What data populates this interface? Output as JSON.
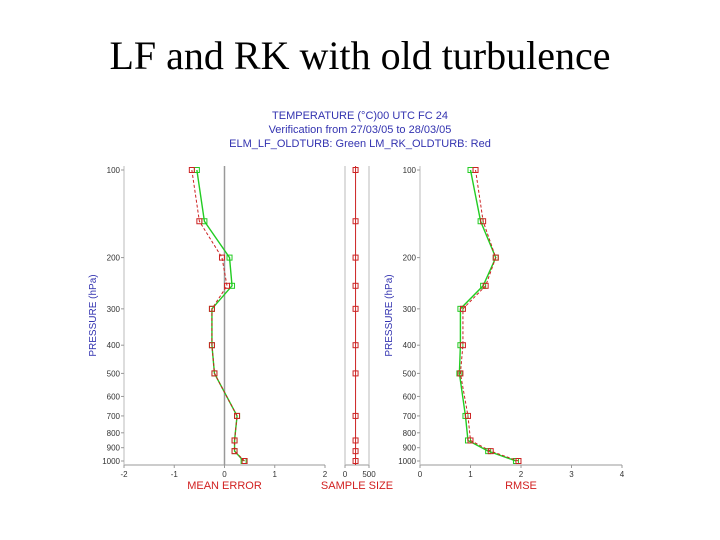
{
  "slide": {
    "title": "LF and RK with old turbulence"
  },
  "header": {
    "line1": "TEMPERATURE (°C)00 UTC FC 24",
    "line2": "Verification from 27/03/05 to 28/03/05",
    "line3": "ELM_LF_OLDTURB: Green    LM_RK_OLDTURB: Red"
  },
  "chart_data": [
    {
      "type": "line",
      "xlabel": "MEAN ERROR",
      "ylabel": "PRESSURE (hPa)",
      "xlim": [
        -2,
        2
      ],
      "xticks": [
        "-2",
        "-1",
        "0",
        "1",
        "2"
      ],
      "y_tick_labels": [
        "100",
        "200",
        "300",
        "400",
        "500",
        "600",
        "700",
        "800",
        "900",
        "1000"
      ],
      "y": [
        100,
        150,
        200,
        250,
        300,
        400,
        500,
        700,
        850,
        925,
        1000
      ],
      "series": [
        {
          "name": "ELM_LF_OLDTURB",
          "color": "#22cc22",
          "values": [
            -0.55,
            -0.4,
            0.1,
            0.15,
            -0.25,
            -0.25,
            -0.2,
            0.25,
            0.2,
            0.2,
            0.38
          ]
        },
        {
          "name": "LM_RK_OLDTURB",
          "color": "#cc2222",
          "values": [
            -0.65,
            -0.5,
            -0.05,
            0.05,
            -0.25,
            -0.25,
            -0.2,
            0.25,
            0.2,
            0.2,
            0.4
          ]
        }
      ]
    },
    {
      "type": "scatter",
      "xlabel": "SAMPLE SIZE",
      "xlim": [
        0,
        500
      ],
      "xticks": [
        "0",
        "500"
      ],
      "y": [
        100,
        150,
        200,
        250,
        300,
        400,
        500,
        700,
        850,
        925,
        1000
      ],
      "series": [
        {
          "name": "LM_RK_OLDTURB",
          "color": "#cc2222",
          "values": [
            220,
            220,
            220,
            220,
            220,
            220,
            220,
            220,
            220,
            220,
            220
          ]
        }
      ]
    },
    {
      "type": "line",
      "xlabel": "RMSE",
      "ylabel": "PRESSURE (hPa)",
      "xlim": [
        0,
        4
      ],
      "xticks": [
        "0",
        "1",
        "2",
        "3",
        "4"
      ],
      "y_tick_labels": [
        "100",
        "200",
        "300",
        "400",
        "500",
        "600",
        "700",
        "800",
        "900",
        "1000"
      ],
      "y": [
        100,
        150,
        200,
        250,
        300,
        400,
        500,
        700,
        850,
        925,
        1000
      ],
      "series": [
        {
          "name": "ELM_LF_OLDTURB",
          "color": "#22cc22",
          "values": [
            1.0,
            1.2,
            1.5,
            1.25,
            0.8,
            0.8,
            0.78,
            0.9,
            0.95,
            1.35,
            1.9
          ]
        },
        {
          "name": "LM_RK_OLDTURB",
          "color": "#cc2222",
          "values": [
            1.1,
            1.25,
            1.5,
            1.3,
            0.85,
            0.85,
            0.8,
            0.95,
            1.0,
            1.4,
            1.95
          ]
        }
      ]
    }
  ]
}
